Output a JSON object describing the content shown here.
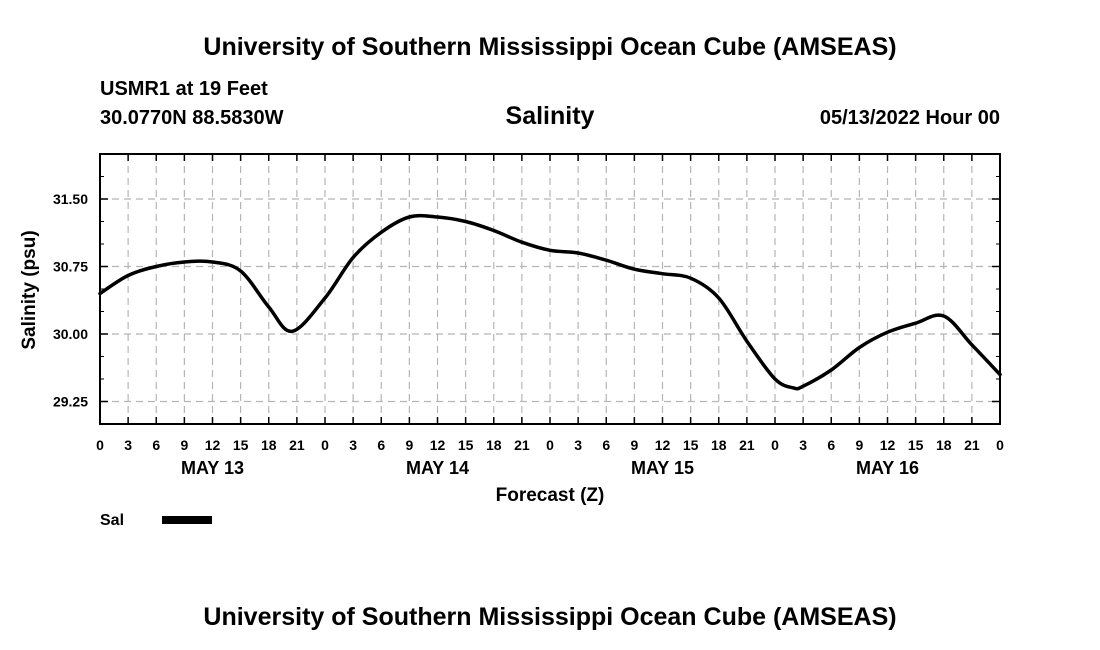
{
  "header": {
    "title_top": "University of Southern Mississippi Ocean Cube (AMSEAS)",
    "title_bottom": "University of Southern Mississippi Ocean Cube (AMSEAS)",
    "station": "USMR1 at 19 Feet",
    "coords": "30.0770N  88.5830W",
    "datetime": "05/13/2022 Hour 00"
  },
  "chart_data": {
    "type": "line",
    "title": "Salinity",
    "xlabel": "Forecast (Z)",
    "ylabel": "Salinity (psu)",
    "xlim": [
      0,
      96
    ],
    "ylim": [
      29.0,
      32.0
    ],
    "y_ticks": [
      29.25,
      30.0,
      30.75,
      31.5
    ],
    "y_tick_labels": [
      "29.25",
      "30.00",
      "30.75",
      "31.50"
    ],
    "x_ticks": [
      0,
      3,
      6,
      9,
      12,
      15,
      18,
      21,
      24,
      27,
      30,
      33,
      36,
      39,
      42,
      45,
      48,
      51,
      54,
      57,
      60,
      63,
      66,
      69,
      72,
      75,
      78,
      81,
      84,
      87,
      90,
      93,
      96
    ],
    "x_tick_labels": [
      "0",
      "3",
      "6",
      "9",
      "12",
      "15",
      "18",
      "21",
      "0",
      "3",
      "6",
      "9",
      "12",
      "15",
      "18",
      "21",
      "0",
      "3",
      "6",
      "9",
      "12",
      "15",
      "18",
      "21",
      "0",
      "3",
      "6",
      "9",
      "12",
      "15",
      "18",
      "21",
      "0"
    ],
    "day_labels": [
      {
        "x": 12,
        "label": "MAY 13"
      },
      {
        "x": 36,
        "label": "MAY 14"
      },
      {
        "x": 60,
        "label": "MAY 15"
      },
      {
        "x": 84,
        "label": "MAY 16"
      }
    ],
    "grid": true,
    "legend": "bottom-left",
    "series": [
      {
        "name": "Sal",
        "color": "#000000",
        "x": [
          0,
          3,
          6,
          9,
          12,
          15,
          18,
          20.5,
          24,
          27,
          30,
          33,
          36,
          39,
          42,
          45,
          48,
          51,
          54,
          57,
          60,
          63,
          66,
          69,
          72,
          74,
          75,
          78,
          81,
          84,
          87,
          90,
          93,
          96
        ],
        "y": [
          30.45,
          30.65,
          30.75,
          30.8,
          30.8,
          30.7,
          30.3,
          30.03,
          30.4,
          30.85,
          31.13,
          31.3,
          31.3,
          31.25,
          31.15,
          31.02,
          30.93,
          30.9,
          30.82,
          30.72,
          30.67,
          30.62,
          30.4,
          29.92,
          29.5,
          29.4,
          29.42,
          29.6,
          29.85,
          30.02,
          30.12,
          30.2,
          29.88,
          29.55
        ]
      }
    ]
  }
}
